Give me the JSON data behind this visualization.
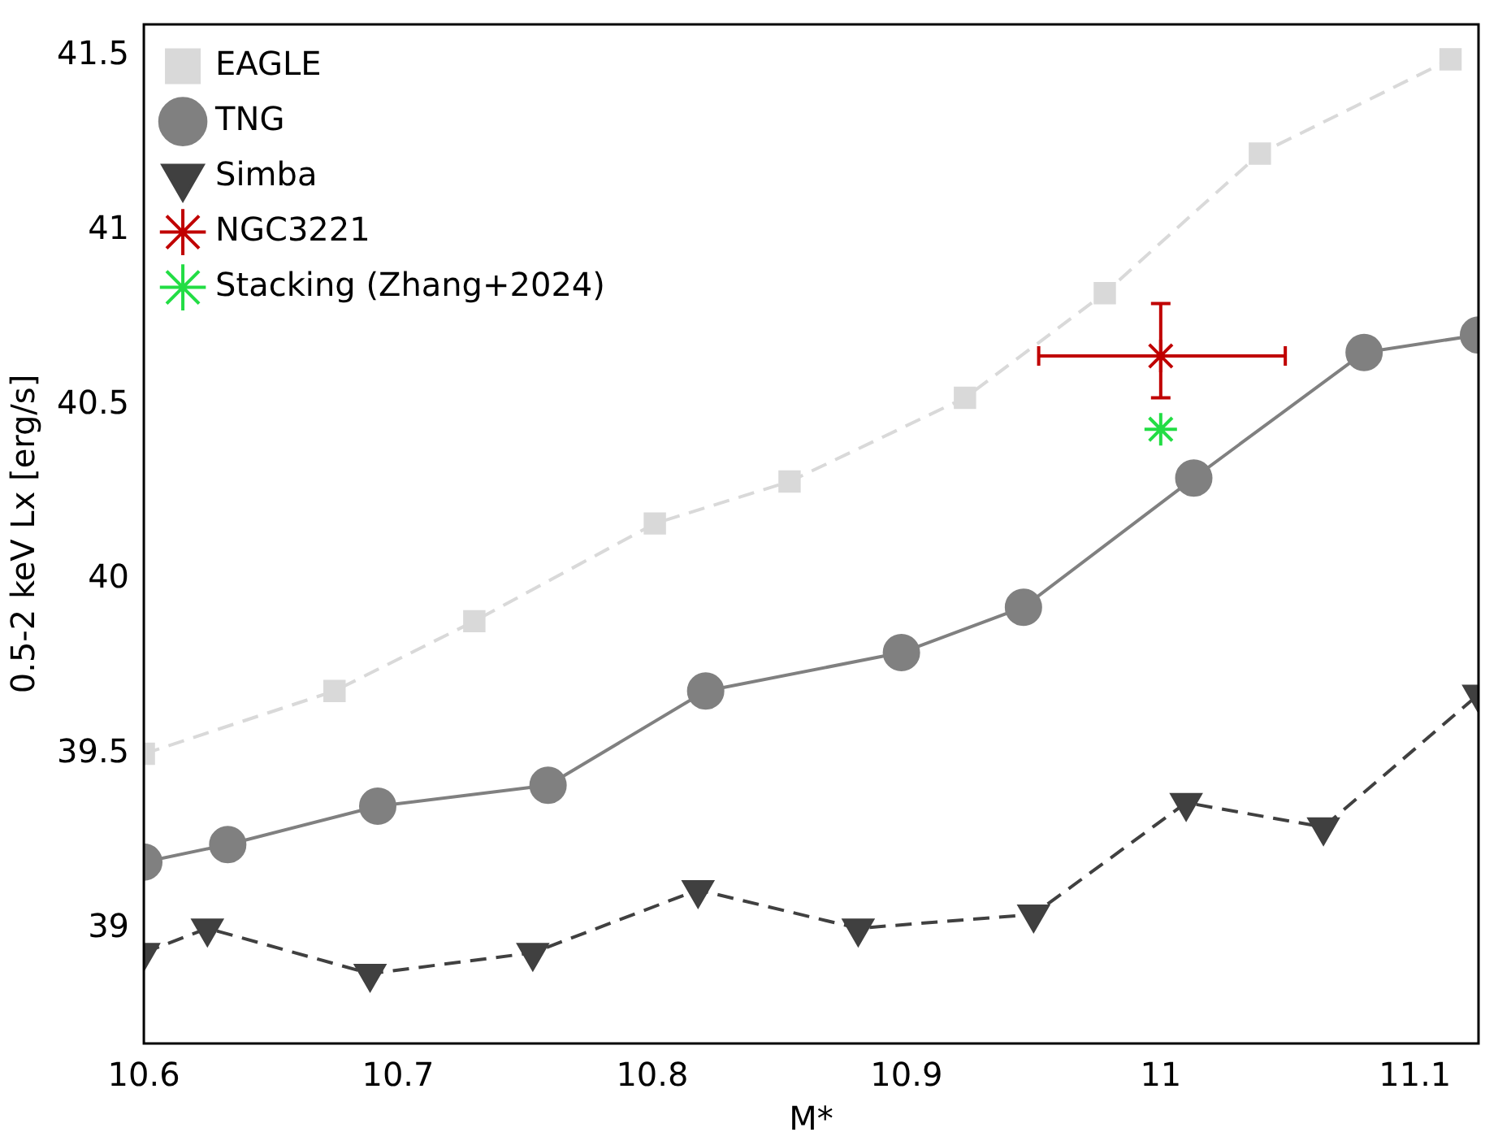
{
  "chart_data": {
    "type": "line",
    "xlabel": "M*",
    "ylabel": "0.5-2 keV Lx [erg/s]",
    "xlim": [
      10.6,
      11.125
    ],
    "xticks": [
      10.6,
      10.7,
      10.8,
      10.9,
      11.0,
      11.1
    ],
    "ylim": [
      38.67,
      41.59
    ],
    "yticks": [
      39.0,
      39.5,
      40.0,
      40.5,
      41.0,
      41.5
    ],
    "legend": "top left",
    "grid": false,
    "series": [
      {
        "name": "EAGLE",
        "color": "#d9d9d9",
        "marker": "square",
        "line_style": "dashed",
        "x": [
          10.6,
          10.675,
          10.73,
          10.801,
          10.854,
          10.923,
          10.978,
          11.039,
          11.114
        ],
        "values": [
          39.5,
          39.68,
          39.88,
          40.16,
          40.28,
          40.52,
          40.82,
          41.22,
          41.49
        ]
      },
      {
        "name": "TNG",
        "color": "#808080",
        "marker": "circle",
        "line_style": "solid",
        "x": [
          10.6,
          10.633,
          10.692,
          10.759,
          10.821,
          10.898,
          10.946,
          11.013,
          11.08,
          11.125
        ],
        "values": [
          39.19,
          39.24,
          39.35,
          39.41,
          39.68,
          39.79,
          39.92,
          40.29,
          40.65,
          40.7
        ]
      },
      {
        "name": "Simba",
        "color": "#404040",
        "marker": "triangle",
        "line_style": "dashed",
        "x": [
          10.6,
          10.625,
          10.689,
          10.753,
          10.818,
          10.881,
          10.95,
          11.01,
          11.064,
          11.125
        ],
        "values": [
          38.93,
          39.0,
          38.87,
          38.93,
          39.11,
          39.0,
          39.04,
          39.36,
          39.29,
          39.67
        ]
      },
      {
        "name": "NGC3221",
        "type": "scatter",
        "color": "#c00000",
        "marker": "cross",
        "x": [
          11.0
        ],
        "values": [
          40.64
        ],
        "errors": [
          [
            40.52,
            40.79
          ]
        ],
        "xerrors": [
          [
            10.952,
            11.049
          ]
        ]
      },
      {
        "name": "Stacking (Zhang+2024)",
        "type": "scatter",
        "color": "#22dd44",
        "marker": "cross",
        "x": [
          11.0
        ],
        "values": [
          40.43
        ]
      }
    ]
  }
}
